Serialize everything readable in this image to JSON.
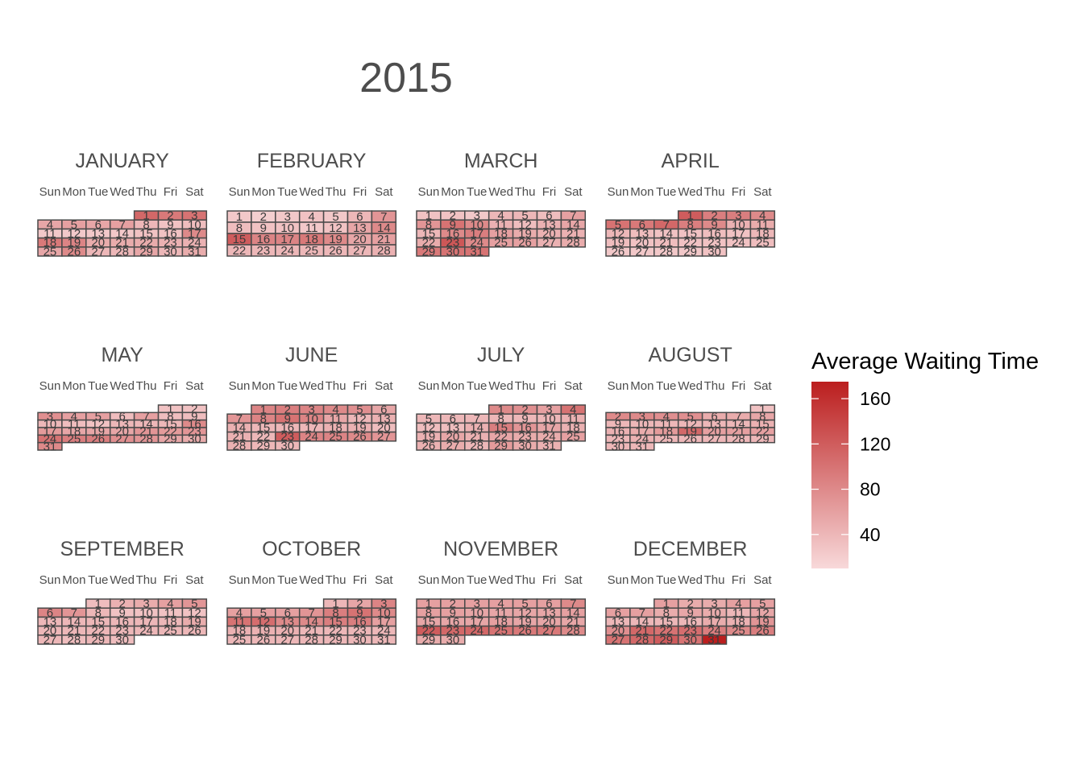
{
  "chart_data": {
    "type": "heatmap",
    "title": "2015",
    "year": 2015,
    "weekday_labels": [
      "Sun",
      "Mon",
      "Tue",
      "Wed",
      "Thu",
      "Fri",
      "Sat"
    ],
    "legend": {
      "title": "Average Waiting Time",
      "ticks": [
        40,
        80,
        120,
        160
      ],
      "range": [
        10,
        175
      ],
      "color_low": "#f8d9da",
      "color_high": "#bb1e1e"
    },
    "months": [
      {
        "name": "JANUARY",
        "values": [
          110,
          95,
          100,
          55,
          60,
          55,
          60,
          40,
          30,
          35,
          25,
          25,
          25,
          25,
          30,
          30,
          80,
          95,
          85,
          50,
          50,
          50,
          45,
          45,
          55,
          80,
          40,
          40,
          55,
          40,
          50
        ]
      },
      {
        "name": "FEBRUARY",
        "values": [
          25,
          20,
          25,
          30,
          25,
          40,
          70,
          35,
          30,
          30,
          25,
          30,
          55,
          80,
          120,
          85,
          85,
          95,
          80,
          55,
          60,
          40,
          40,
          40,
          40,
          40,
          40,
          45
        ]
      },
      {
        "name": "MARCH",
        "values": [
          30,
          30,
          25,
          40,
          40,
          35,
          60,
          70,
          100,
          80,
          45,
          35,
          45,
          55,
          40,
          80,
          90,
          60,
          50,
          45,
          45,
          50,
          125,
          80,
          60,
          60,
          45,
          50,
          95,
          100,
          100
        ]
      },
      {
        "name": "APRIL",
        "values": [
          120,
          90,
          90,
          80,
          100,
          95,
          110,
          90,
          80,
          45,
          50,
          40,
          35,
          30,
          30,
          35,
          30,
          40,
          35,
          30,
          35,
          30,
          30,
          30,
          35,
          25,
          25,
          25,
          25,
          30
        ]
      },
      {
        "name": "MAY",
        "values": [
          30,
          30,
          75,
          60,
          60,
          35,
          60,
          35,
          35,
          40,
          35,
          30,
          40,
          40,
          40,
          80,
          65,
          55,
          55,
          55,
          70,
          65,
          70,
          100,
          90,
          90,
          75,
          70,
          55,
          50,
          80
        ]
      },
      {
        "name": "JUNE",
        "values": [
          85,
          90,
          85,
          80,
          75,
          55,
          70,
          85,
          100,
          85,
          55,
          40,
          45,
          45,
          40,
          40,
          40,
          45,
          45,
          35,
          45,
          40,
          120,
          85,
          85,
          80,
          70,
          45,
          40,
          40
        ]
      },
      {
        "name": "JULY",
        "values": [
          80,
          75,
          60,
          100,
          40,
          40,
          40,
          40,
          40,
          40,
          45,
          35,
          35,
          45,
          90,
          70,
          55,
          45,
          45,
          55,
          45,
          55,
          50,
          50,
          60,
          45,
          50,
          40,
          65,
          50,
          45
        ]
      },
      {
        "name": "AUGUST",
        "values": [
          30,
          80,
          80,
          75,
          75,
          50,
          50,
          55,
          40,
          40,
          40,
          40,
          40,
          40,
          45,
          45,
          50,
          65,
          110,
          60,
          60,
          60,
          40,
          45,
          40,
          40,
          40,
          40,
          40,
          40,
          40
        ]
      },
      {
        "name": "SEPTEMBER",
        "values": [
          35,
          45,
          50,
          60,
          70,
          85,
          70,
          40,
          30,
          30,
          30,
          30,
          40,
          40,
          40,
          40,
          40,
          40,
          50,
          40,
          40,
          40,
          40,
          40,
          40,
          40,
          40,
          35,
          40,
          35
        ]
      },
      {
        "name": "OCTOBER",
        "values": [
          40,
          55,
          85,
          60,
          60,
          60,
          70,
          90,
          100,
          80,
          100,
          105,
          80,
          80,
          90,
          90,
          60,
          45,
          45,
          45,
          40,
          40,
          40,
          40,
          40,
          40,
          40,
          40,
          40,
          40,
          40
        ]
      },
      {
        "name": "NOVEMBER",
        "values": [
          60,
          60,
          60,
          60,
          60,
          60,
          80,
          60,
          60,
          55,
          55,
          55,
          55,
          60,
          55,
          55,
          55,
          60,
          55,
          55,
          55,
          120,
          110,
          110,
          100,
          95,
          95,
          80,
          50,
          50
        ]
      },
      {
        "name": "DECEMBER",
        "values": [
          60,
          50,
          50,
          60,
          60,
          60,
          60,
          50,
          55,
          50,
          40,
          55,
          40,
          40,
          40,
          40,
          50,
          45,
          70,
          75,
          110,
          100,
          105,
          90,
          80,
          90,
          100,
          110,
          120,
          100,
          175
        ]
      }
    ]
  }
}
